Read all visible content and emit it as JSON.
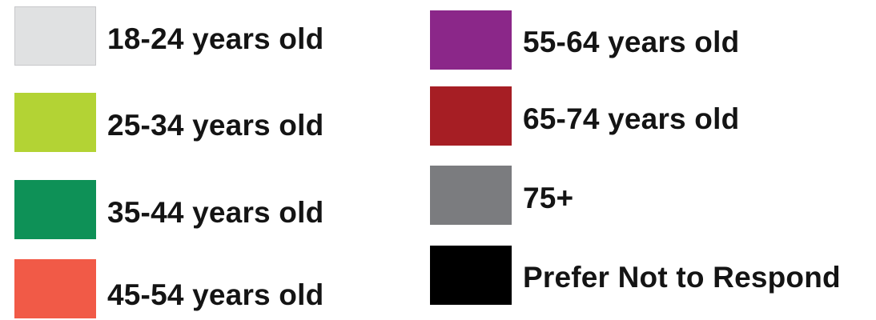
{
  "chart_data": {
    "type": "legend",
    "title": "",
    "entries": [
      {
        "label": "18-24 years old",
        "color": "#e0e1e2"
      },
      {
        "label": "25-34 years old",
        "color": "#b3d334"
      },
      {
        "label": "35-44 years old",
        "color": "#0e9157"
      },
      {
        "label": "45-54 years old",
        "color": "#f15a47"
      },
      {
        "label": "55-64 years old",
        "color": "#8b2789"
      },
      {
        "label": "65-74 years old",
        "color": "#a61e24"
      },
      {
        "label": "75+",
        "color": "#7b7c7f"
      },
      {
        "label": "Prefer Not to Respond",
        "color": "#000000"
      }
    ]
  }
}
